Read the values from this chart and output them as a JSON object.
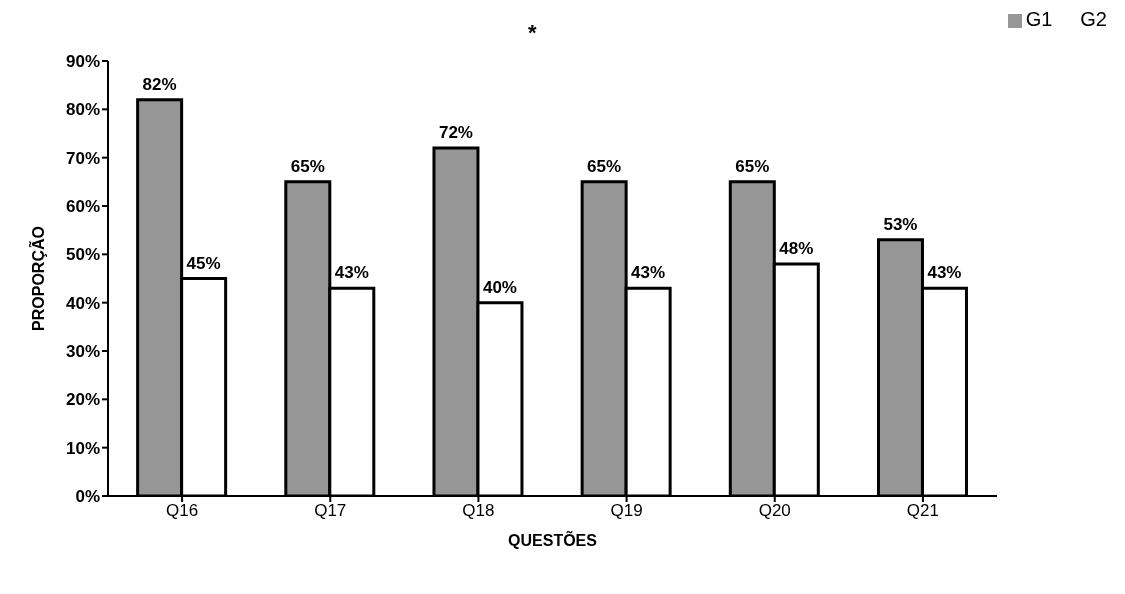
{
  "chart_data": {
    "type": "bar",
    "xlabel": "QUESTÕES",
    "ylabel": "PROPORÇÃO",
    "annotations": [
      "*"
    ],
    "categories": [
      "Q16",
      "Q17",
      "Q18",
      "Q19",
      "Q20",
      "Q21"
    ],
    "series": [
      {
        "name": "G1",
        "color": "#969696",
        "values": [
          82,
          65,
          72,
          65,
          65,
          53
        ],
        "value_labels": [
          "82%",
          "65%",
          "72%",
          "65%",
          "65%",
          "53%"
        ]
      },
      {
        "name": "G2",
        "color": "#ffffff",
        "values": [
          45,
          43,
          40,
          43,
          48,
          43
        ],
        "value_labels": [
          "45%",
          "43%",
          "40%",
          "43%",
          "48%",
          "43%"
        ]
      }
    ],
    "ylim": [
      0,
      90
    ],
    "yticks": [
      {
        "value": 0,
        "label": "0%"
      },
      {
        "value": 10,
        "label": "10%"
      },
      {
        "value": 20,
        "label": "20%"
      },
      {
        "value": 30,
        "label": "30%"
      },
      {
        "value": 40,
        "label": "40%"
      },
      {
        "value": 50,
        "label": "50%"
      },
      {
        "value": 60,
        "label": "60%"
      },
      {
        "value": 70,
        "label": "70%"
      },
      {
        "value": 80,
        "label": "80%"
      },
      {
        "value": 90,
        "label": "90%"
      }
    ],
    "grid": false,
    "legend": "top right"
  }
}
